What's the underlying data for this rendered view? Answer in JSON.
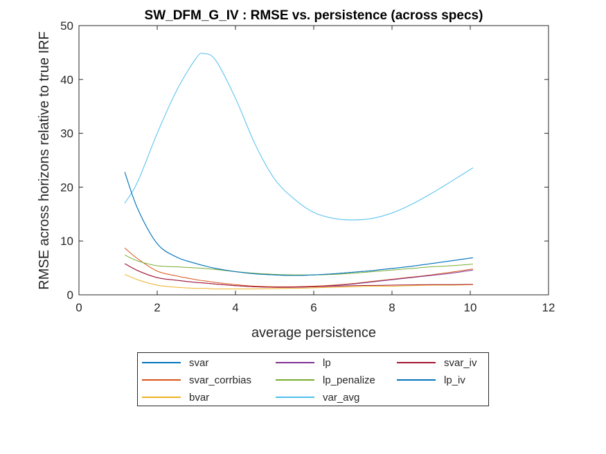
{
  "chart_data": {
    "type": "line",
    "title": "SW_DFM_G_IV : RMSE vs. persistence (across specs)",
    "xlabel": "average persistence",
    "ylabel": "RMSE across horizons relative to true IRF",
    "xlim": [
      0,
      12
    ],
    "ylim": [
      0,
      50
    ],
    "xticks": [
      0,
      2,
      4,
      6,
      8,
      10,
      12
    ],
    "yticks": [
      0,
      10,
      20,
      30,
      40,
      50
    ],
    "grid": false,
    "legend_position": "bottom",
    "x": [
      1.17,
      1.5,
      2.0,
      2.5,
      3.0,
      3.2,
      3.5,
      4.0,
      4.5,
      5.0,
      5.5,
      6.0,
      6.5,
      7.0,
      7.5,
      8.0,
      8.5,
      9.0,
      9.5,
      10.07
    ],
    "series": [
      {
        "name": "svar",
        "color": "#0072BD",
        "values": [
          22.8,
          16.0,
          9.5,
          7.0,
          5.8,
          5.4,
          4.9,
          4.3,
          3.9,
          3.7,
          3.6,
          3.7,
          3.9,
          4.2,
          4.5,
          4.9,
          5.3,
          5.8,
          6.3,
          6.9
        ]
      },
      {
        "name": "svar_corrbias",
        "color": "#D95319",
        "values": [
          8.7,
          6.7,
          4.4,
          3.5,
          2.8,
          2.6,
          2.3,
          1.9,
          1.6,
          1.5,
          1.5,
          1.6,
          1.8,
          2.1,
          2.5,
          2.9,
          3.3,
          3.7,
          4.2,
          4.8
        ]
      },
      {
        "name": "bvar",
        "color": "#EDB120",
        "values": [
          3.8,
          2.8,
          1.8,
          1.4,
          1.2,
          1.2,
          1.1,
          1.1,
          1.1,
          1.15,
          1.2,
          1.3,
          1.4,
          1.5,
          1.6,
          1.6,
          1.7,
          1.8,
          1.8,
          1.9
        ]
      },
      {
        "name": "lp",
        "color": "#7E2F8E",
        "values": [
          5.8,
          4.5,
          3.2,
          2.7,
          2.3,
          2.2,
          2.0,
          1.7,
          1.5,
          1.4,
          1.4,
          1.5,
          1.7,
          2.0,
          2.4,
          2.8,
          3.2,
          3.6,
          4.0,
          4.6
        ]
      },
      {
        "name": "lp_penalize",
        "color": "#77AC30",
        "values": [
          7.4,
          6.3,
          5.4,
          5.2,
          5.0,
          4.9,
          4.7,
          4.3,
          4.0,
          3.8,
          3.7,
          3.7,
          3.8,
          4.0,
          4.3,
          4.6,
          4.9,
          5.2,
          5.4,
          5.7
        ]
      },
      {
        "name": "var_avg",
        "color": "#4DBEEE",
        "values": [
          17.0,
          21.0,
          30.0,
          38.0,
          44.0,
          44.8,
          43.5,
          36.5,
          28.0,
          21.5,
          17.8,
          15.3,
          14.2,
          13.9,
          14.2,
          15.2,
          16.8,
          18.8,
          21.0,
          23.6
        ]
      },
      {
        "name": "svar_iv",
        "color": "#A2142F",
        "values": [
          5.8,
          4.5,
          3.2,
          2.7,
          2.3,
          2.2,
          2.0,
          1.7,
          1.5,
          1.4,
          1.45,
          1.5,
          1.6,
          1.7,
          1.75,
          1.8,
          1.85,
          1.9,
          1.9,
          1.95
        ]
      },
      {
        "name": "lp_iv",
        "color": "#0072BD",
        "values": [
          22.8,
          16.0,
          9.5,
          7.0,
          5.8,
          5.4,
          4.9,
          4.3,
          3.9,
          3.7,
          3.6,
          3.7,
          3.9,
          4.2,
          4.5,
          4.9,
          5.3,
          5.8,
          6.3,
          6.9
        ]
      }
    ],
    "legend_columns": [
      [
        "svar",
        "svar_corrbias",
        "bvar"
      ],
      [
        "lp",
        "lp_penalize",
        "var_avg"
      ],
      [
        "svar_iv",
        "lp_iv"
      ]
    ]
  }
}
